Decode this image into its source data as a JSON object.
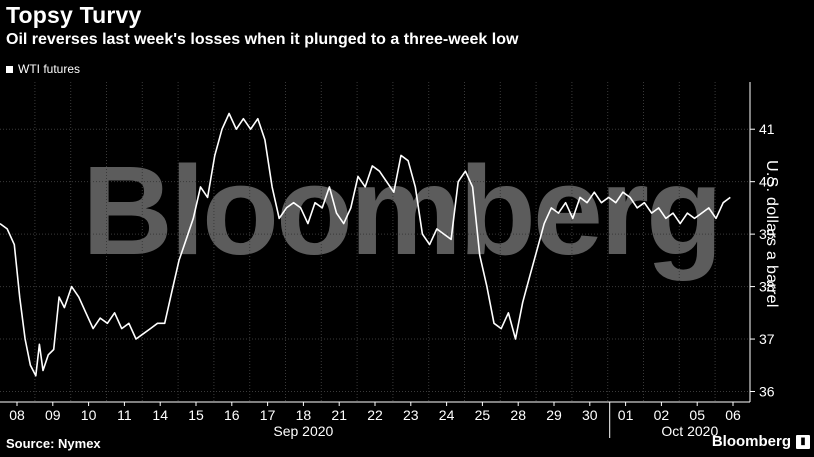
{
  "title": "Topsy Turvy",
  "subtitle": "Oil reverses last week's losses when it plunged to a three-week low",
  "legend": {
    "label": "WTI futures",
    "color": "#ffffff"
  },
  "source": "Source: Nymex",
  "brand": {
    "name": "Bloomberg",
    "watermark": "Bloomberg"
  },
  "colors": {
    "background": "#000000",
    "line": "#ffffff",
    "grid": "#3a3a3a",
    "watermark": "#5c5c5c"
  },
  "chart_data": {
    "type": "line",
    "ylabel": "U.S. dollars a barrel",
    "ylim": [
      35.8,
      41.9
    ],
    "yticks": [
      36,
      37,
      38,
      39,
      40,
      41
    ],
    "grid": true,
    "legend_position": "top-left",
    "x_tick_labels": [
      "08",
      "09",
      "10",
      "11",
      "14",
      "15",
      "16",
      "17",
      "18",
      "21",
      "22",
      "23",
      "24",
      "25",
      "28",
      "29",
      "30",
      "01",
      "02",
      "05",
      "06"
    ],
    "month_labels": [
      "Sep 2020",
      "Oct 2020"
    ],
    "series": [
      {
        "name": "WTI futures",
        "x": [
          0,
          0.2,
          0.4,
          0.55,
          0.7,
          0.85,
          1.0,
          1.1,
          1.2,
          1.35,
          1.5,
          1.65,
          1.8,
          2.0,
          2.2,
          2.4,
          2.6,
          2.8,
          3.0,
          3.2,
          3.4,
          3.6,
          3.8,
          4.0,
          4.2,
          4.4,
          4.6,
          4.8,
          5.0,
          5.2,
          5.4,
          5.6,
          5.8,
          6.0,
          6.2,
          6.4,
          6.6,
          6.8,
          7.0,
          7.2,
          7.4,
          7.6,
          7.8,
          8.0,
          8.2,
          8.4,
          8.6,
          8.8,
          9.0,
          9.2,
          9.4,
          9.6,
          9.8,
          10.0,
          10.2,
          10.4,
          10.6,
          10.8,
          11.0,
          11.2,
          11.4,
          11.6,
          11.8,
          12.0,
          12.2,
          12.4,
          12.6,
          12.8,
          13.0,
          13.2,
          13.4,
          13.6,
          13.8,
          14.0,
          14.2,
          14.4,
          14.6,
          14.8,
          15.0,
          15.2,
          15.4,
          15.6,
          15.8,
          16.0,
          16.2,
          16.4,
          16.6,
          16.8,
          17.0,
          17.2,
          17.4,
          17.6,
          17.8,
          18.0,
          18.2,
          18.4,
          18.6,
          18.8,
          19.0,
          19.2,
          19.4,
          19.6,
          19.8,
          20.0,
          20.2,
          20.4
        ],
        "values": [
          39.2,
          39.1,
          38.8,
          37.8,
          37.0,
          36.5,
          36.3,
          36.9,
          36.4,
          36.7,
          36.8,
          37.8,
          37.6,
          38.0,
          37.8,
          37.5,
          37.2,
          37.4,
          37.3,
          37.5,
          37.2,
          37.3,
          37.0,
          37.1,
          37.2,
          37.3,
          37.3,
          37.9,
          38.5,
          38.9,
          39.3,
          39.9,
          39.7,
          40.5,
          41.0,
          41.3,
          41.0,
          41.2,
          41.0,
          41.2,
          40.8,
          39.9,
          39.3,
          39.5,
          39.6,
          39.5,
          39.2,
          39.6,
          39.5,
          39.9,
          39.4,
          39.2,
          39.5,
          40.1,
          39.9,
          40.3,
          40.2,
          40.0,
          39.8,
          40.5,
          40.4,
          39.9,
          39.0,
          38.8,
          39.1,
          39.0,
          38.9,
          40.0,
          40.2,
          39.9,
          38.6,
          38.0,
          37.3,
          37.2,
          37.5,
          37.0,
          37.7,
          38.2,
          38.7,
          39.2,
          39.5,
          39.4,
          39.6,
          39.3,
          39.7,
          39.6,
          39.8,
          39.6,
          39.7,
          39.6,
          39.8,
          39.7,
          39.5,
          39.6,
          39.4,
          39.5,
          39.3,
          39.4,
          39.2,
          39.4,
          39.3,
          39.4,
          39.5,
          39.3,
          39.6,
          39.7
        ]
      }
    ]
  }
}
